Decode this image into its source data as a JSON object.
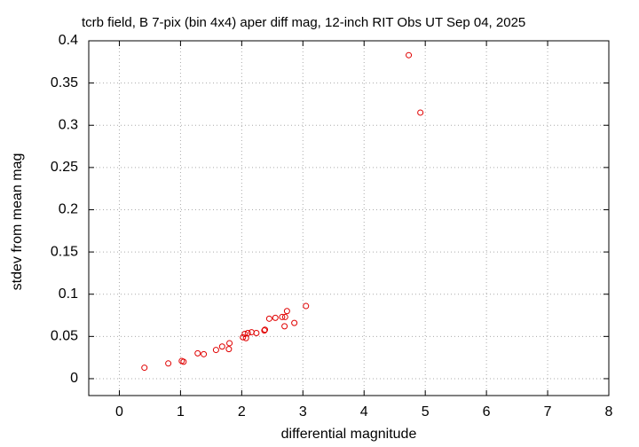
{
  "chart_data": {
    "type": "scatter",
    "title": "tcrb field, B 7-pix (bin 4x4) aper diff mag,  12-inch RIT Obs UT Sep 04, 2025",
    "x_label": "differential magnitude",
    "y_label": "stdev from mean mag",
    "color": "#e00000",
    "grid": true,
    "xlim": [
      -0.5,
      8
    ],
    "ylim": [
      -0.02,
      0.4
    ],
    "xticks": [
      0,
      1,
      2,
      3,
      4,
      5,
      6,
      7,
      8
    ],
    "yticks": [
      0,
      0.05,
      0.1,
      0.15,
      0.2,
      0.25,
      0.3,
      0.35,
      0.4
    ],
    "x": [
      0.41,
      0.8,
      1.02,
      1.05,
      1.28,
      1.38,
      1.58,
      1.68,
      1.79,
      1.8,
      2.02,
      2.05,
      2.07,
      2.1,
      2.16,
      2.24,
      2.37,
      2.38,
      2.45,
      2.55,
      2.66,
      2.71,
      2.7,
      2.74,
      2.86,
      3.05,
      4.73,
      4.92
    ],
    "y": [
      0.013,
      0.018,
      0.021,
      0.02,
      0.03,
      0.029,
      0.034,
      0.038,
      0.035,
      0.042,
      0.049,
      0.053,
      0.048,
      0.054,
      0.055,
      0.054,
      0.057,
      0.058,
      0.071,
      0.072,
      0.073,
      0.073,
      0.062,
      0.08,
      0.066,
      0.086,
      0.383,
      0.315
    ]
  }
}
